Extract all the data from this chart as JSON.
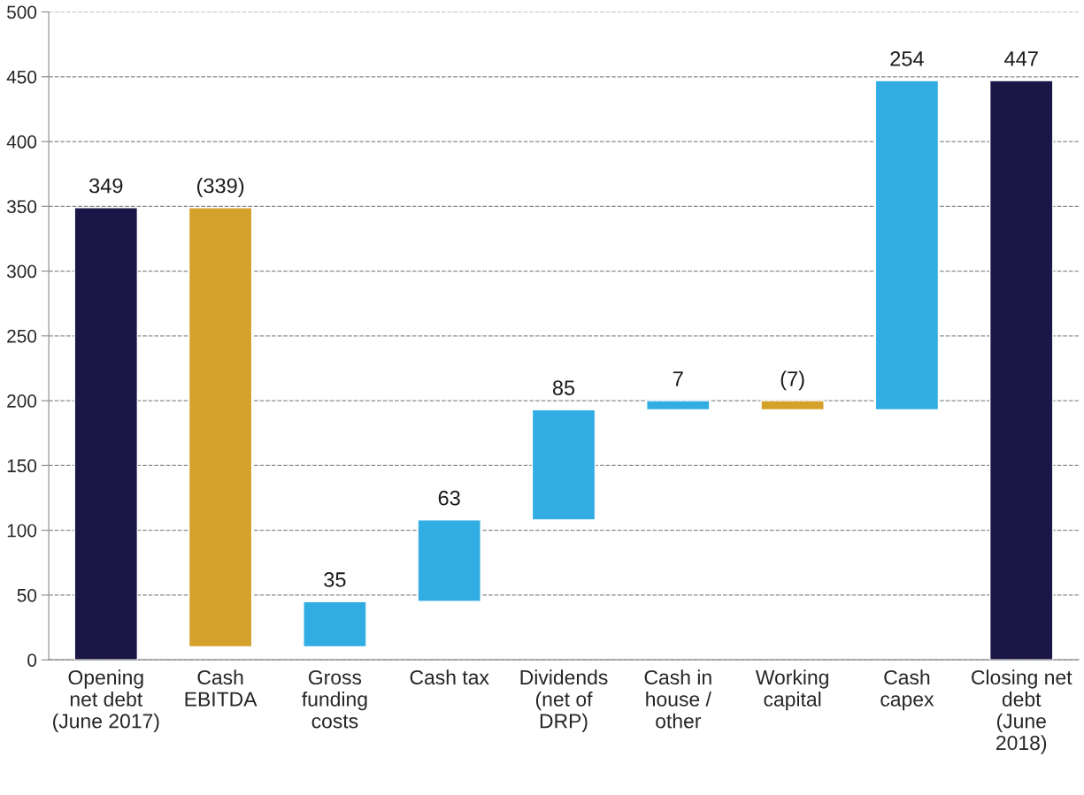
{
  "chart_data": {
    "type": "bar",
    "categories": [
      "Opening\nnet debt\n(June 2017)",
      "Cash\nEBITDA",
      "Gross\nfunding\ncosts",
      "Cash tax",
      "Dividends\n(net of\nDRP)",
      "Cash in\nhouse /\nother",
      "Working\ncapital",
      "Cash\ncapex",
      "Closing net\ndebt\n(June\n2018)"
    ],
    "values": [
      349,
      -339,
      35,
      63,
      85,
      7,
      -7,
      254,
      447
    ],
    "base": [
      0,
      349,
      10,
      45,
      108,
      193,
      200,
      193,
      0
    ],
    "colors": [
      "#1a1646",
      "#d4a12a",
      "#31ade3",
      "#31ade3",
      "#31ade3",
      "#31ade3",
      "#d4a12a",
      "#31ade3",
      "#1a1646"
    ],
    "value_labels": [
      "349",
      "(339)",
      "35",
      "63",
      "85",
      "7",
      "(7)",
      "254",
      "447"
    ],
    "ylim": [
      0,
      500
    ],
    "yticks": [
      0,
      50,
      100,
      150,
      200,
      250,
      300,
      350,
      400,
      450,
      500
    ],
    "grid": "y"
  }
}
